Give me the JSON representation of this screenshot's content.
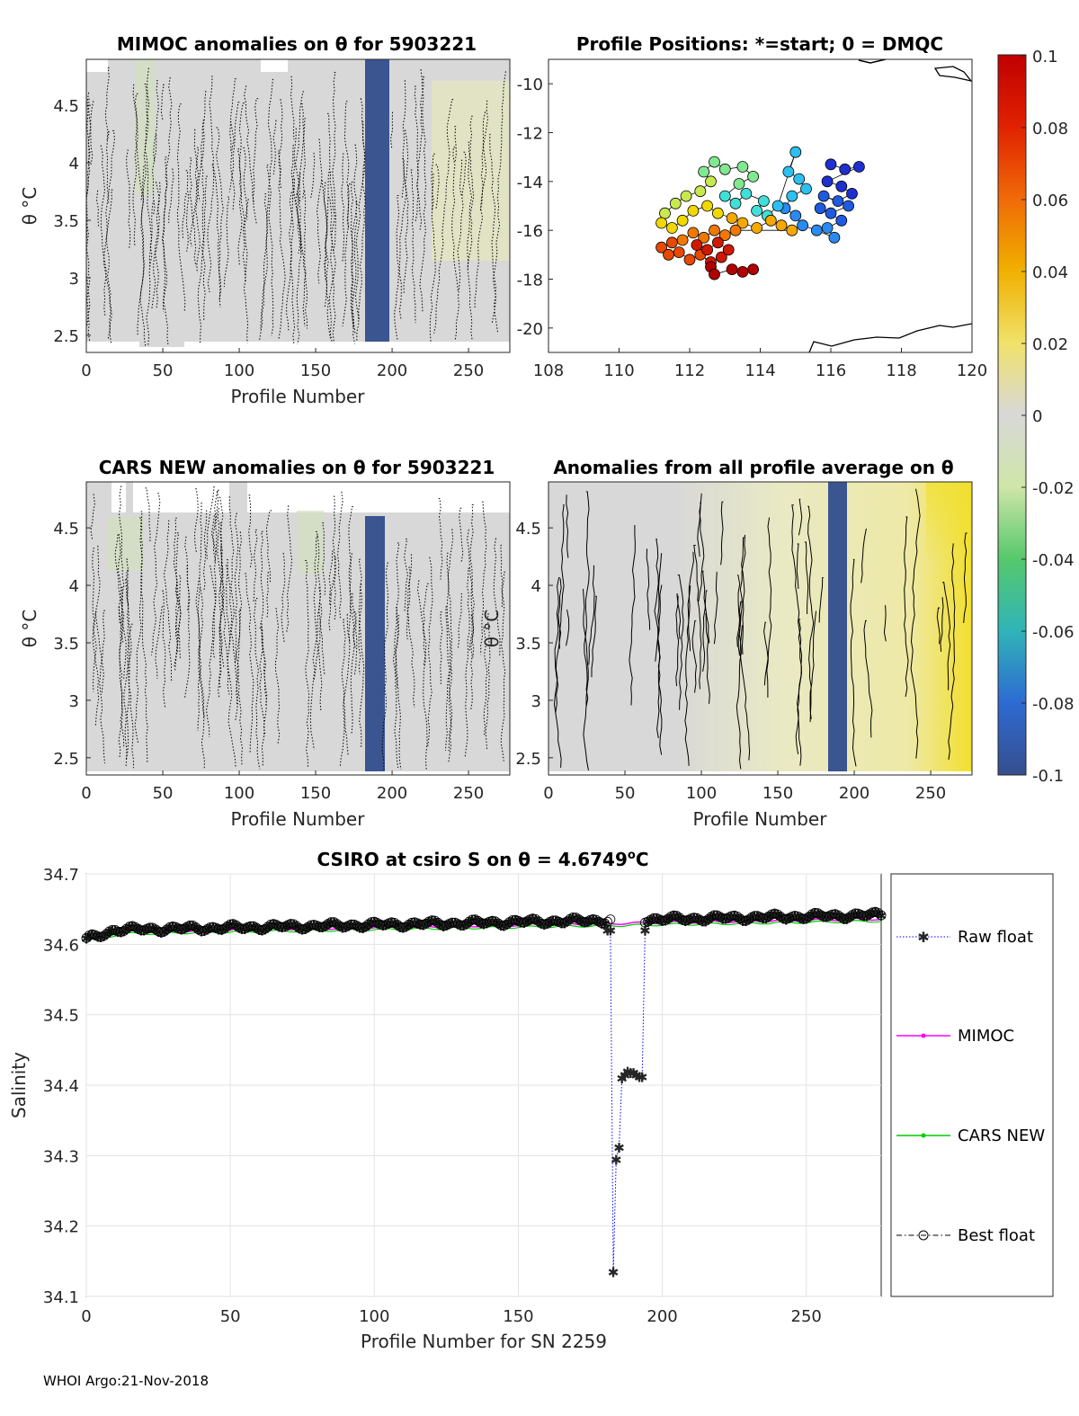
{
  "footer": "WHOI Argo:21-Nov-2018",
  "panels": {
    "mimoc_anom": {
      "title": "MIMOC anomalies on θ  for 5903221",
      "xlabel": "Profile Number",
      "ylabel": "θ °C",
      "xticks": [
        "0",
        "50",
        "100",
        "150",
        "200",
        "250"
      ],
      "yticks": [
        "2.5",
        "3",
        "3.5",
        "4",
        "4.5"
      ]
    },
    "positions": {
      "title": "Profile Positions: *=start; 0 = DMQC",
      "xticks": [
        "108",
        "110",
        "112",
        "114",
        "116",
        "118",
        "120"
      ],
      "yticks": [
        "-10",
        "-12",
        "-14",
        "-16",
        "-18",
        "-20"
      ]
    },
    "cars_anom": {
      "title": "CARS NEW anomalies on θ for 5903221",
      "xlabel": "Profile Number",
      "ylabel": "θ °C",
      "xticks": [
        "0",
        "50",
        "100",
        "150",
        "200",
        "250"
      ],
      "yticks": [
        "2.5",
        "3",
        "3.5",
        "4",
        "4.5"
      ]
    },
    "avg_anom": {
      "title": "Anomalies from all profile average on θ",
      "xlabel": "Profile Number",
      "ylabel": "θ °C",
      "xticks": [
        "0",
        "50",
        "100",
        "150",
        "200",
        "250"
      ],
      "yticks": [
        "2.5",
        "3",
        "3.5",
        "4",
        "4.5"
      ]
    },
    "colorbar": {
      "ticks": [
        "0.1",
        "0.08",
        "0.06",
        "0.04",
        "0.02",
        "0",
        "-0.02",
        "-0.04",
        "-0.06",
        "-0.08",
        "-0.1"
      ]
    }
  },
  "chart_data": [
    {
      "type": "heatmap",
      "title": "MIMOC anomalies on θ  for 5903221",
      "xlabel": "Profile Number",
      "ylabel": "θ °C",
      "xlim": [
        0,
        277
      ],
      "ylim": [
        2.35,
        4.9
      ],
      "clim": [
        -0.1,
        0.1
      ],
      "notes": "mostly near-zero anomalies; high negative anomaly band at profiles ~183-194"
    },
    {
      "type": "scatter",
      "title": "Profile Positions: *=start; 0 = DMQC",
      "xlim": [
        108,
        120
      ],
      "ylim": [
        -21,
        -9
      ],
      "color_variable": "profile (colored -0.1 blue to 0.1 red scale)",
      "points": [
        [
          116.0,
          -13.3
        ],
        [
          116.4,
          -13.5
        ],
        [
          116.8,
          -13.4
        ],
        [
          115.9,
          -14.0
        ],
        [
          116.3,
          -14.2
        ],
        [
          116.6,
          -14.5
        ],
        [
          116.2,
          -14.8
        ],
        [
          115.8,
          -14.6
        ],
        [
          116.5,
          -15.0
        ],
        [
          116.0,
          -15.3
        ],
        [
          115.7,
          -15.1
        ],
        [
          116.3,
          -15.6
        ],
        [
          115.9,
          -15.9
        ],
        [
          116.1,
          -16.3
        ],
        [
          115.6,
          -16.0
        ],
        [
          115.2,
          -15.8
        ],
        [
          115.0,
          -15.4
        ],
        [
          114.7,
          -15.1
        ],
        [
          114.9,
          -14.6
        ],
        [
          115.3,
          -14.3
        ],
        [
          115.1,
          -13.9
        ],
        [
          114.8,
          -13.6
        ],
        [
          115.0,
          -12.8
        ],
        [
          114.5,
          -15.0
        ],
        [
          114.2,
          -15.4
        ],
        [
          113.9,
          -15.2
        ],
        [
          114.1,
          -14.8
        ],
        [
          113.6,
          -14.5
        ],
        [
          113.3,
          -14.9
        ],
        [
          113.0,
          -14.6
        ],
        [
          113.4,
          -14.1
        ],
        [
          113.8,
          -13.8
        ],
        [
          113.5,
          -13.4
        ],
        [
          113.0,
          -13.5
        ],
        [
          112.7,
          -13.2
        ],
        [
          112.4,
          -13.6
        ],
        [
          112.6,
          -14.0
        ],
        [
          112.3,
          -14.4
        ],
        [
          111.9,
          -14.6
        ],
        [
          111.6,
          -14.9
        ],
        [
          111.3,
          -15.3
        ],
        [
          111.2,
          -15.7
        ],
        [
          111.5,
          -15.9
        ],
        [
          111.8,
          -15.6
        ],
        [
          112.1,
          -15.2
        ],
        [
          112.5,
          -15.0
        ],
        [
          112.8,
          -15.3
        ],
        [
          113.2,
          -15.5
        ],
        [
          113.5,
          -15.7
        ],
        [
          113.9,
          -15.9
        ],
        [
          114.3,
          -15.6
        ],
        [
          114.6,
          -15.8
        ],
        [
          114.9,
          -16.0
        ],
        [
          113.3,
          -16.0
        ],
        [
          113.0,
          -16.2
        ],
        [
          112.7,
          -16.0
        ],
        [
          112.4,
          -16.3
        ],
        [
          112.1,
          -16.1
        ],
        [
          111.8,
          -16.4
        ],
        [
          111.5,
          -16.5
        ],
        [
          111.2,
          -16.7
        ],
        [
          111.4,
          -17.0
        ],
        [
          111.7,
          -16.9
        ],
        [
          112.0,
          -17.2
        ],
        [
          112.3,
          -17.0
        ],
        [
          112.6,
          -17.3
        ],
        [
          112.9,
          -17.1
        ],
        [
          113.1,
          -16.8
        ],
        [
          112.8,
          -16.5
        ],
        [
          112.5,
          -16.8
        ],
        [
          112.2,
          -16.6
        ],
        [
          112.6,
          -17.5
        ],
        [
          112.7,
          -17.8
        ],
        [
          113.2,
          -17.6
        ],
        [
          113.5,
          -17.7
        ],
        [
          113.8,
          -17.6
        ]
      ]
    },
    {
      "type": "heatmap",
      "title": "CARS NEW anomalies on θ for 5903221",
      "xlabel": "Profile Number",
      "ylabel": "θ °C",
      "xlim": [
        0,
        277
      ],
      "ylim": [
        2.35,
        4.9
      ],
      "clim": [
        -0.1,
        0.1
      ],
      "notes": "mostly near-zero anomalies; high negative anomaly band at profiles ~183-194"
    },
    {
      "type": "heatmap",
      "title": "Anomalies from all profile average on θ",
      "xlabel": "Profile Number",
      "ylabel": "θ °C",
      "xlim": [
        0,
        277
      ],
      "ylim": [
        2.35,
        4.9
      ],
      "clim": [
        -0.1,
        0.1
      ],
      "notes": "near zero for early profiles, increasing positive (yellow) for later profiles; negative band at ~183-194"
    },
    {
      "type": "line",
      "title": "CSIRO at csiro S on θ = 4.6749°C",
      "title_main": "CSIRO at csiro S on θ = 4.6749",
      "title_sup": "o",
      "title_unit": "C",
      "xlabel": "Profile Number for SN 2259",
      "ylabel": "Salinity",
      "xlim": [
        0,
        276
      ],
      "ylim": [
        34.1,
        34.7
      ],
      "xticks": [
        "0",
        "50",
        "100",
        "150",
        "200",
        "250"
      ],
      "yticks": [
        "34.7",
        "34.6",
        "34.5",
        "34.4",
        "34.3",
        "34.2",
        "34.1"
      ],
      "raw_float_dip": {
        "x": [
          181,
          182,
          183,
          184,
          185,
          186,
          187,
          188,
          189,
          190,
          191,
          192,
          193,
          194
        ],
        "y": [
          34.62,
          34.62,
          34.135,
          34.295,
          34.312,
          34.41,
          34.415,
          34.42,
          34.418,
          34.418,
          34.415,
          34.412,
          34.412,
          34.62
        ]
      },
      "series": [
        {
          "name": "Raw float",
          "color": "#0000ff",
          "style": "dotted, asterisk markers",
          "summary": "follows best float ~34.605-34.648 except profiles 183-193 dropping to 34.135-34.42"
        },
        {
          "name": "MIMOC",
          "color": "#ff00ff",
          "style": "solid, dot markers",
          "summary": "34.607 at start, ~34.615 by 50, ~34.62 at 150, ~34.626 at 200, ~34.635 at 276"
        },
        {
          "name": "CARS NEW",
          "color": "#00cc00",
          "style": "solid, dot markers",
          "summary": "overlaps MIMOC, ~34.61-34.62"
        },
        {
          "name": "Best float",
          "color": "#000000",
          "style": "dash-dot, open circles",
          "summary": "34.605 at start, ~34.618 by 50, ~34.625 at 150, ~34.625 at 200, ~34.645 at 276"
        }
      ],
      "legend": [
        "Raw float",
        "MIMOC",
        "CARS NEW",
        "Best float"
      ]
    }
  ]
}
